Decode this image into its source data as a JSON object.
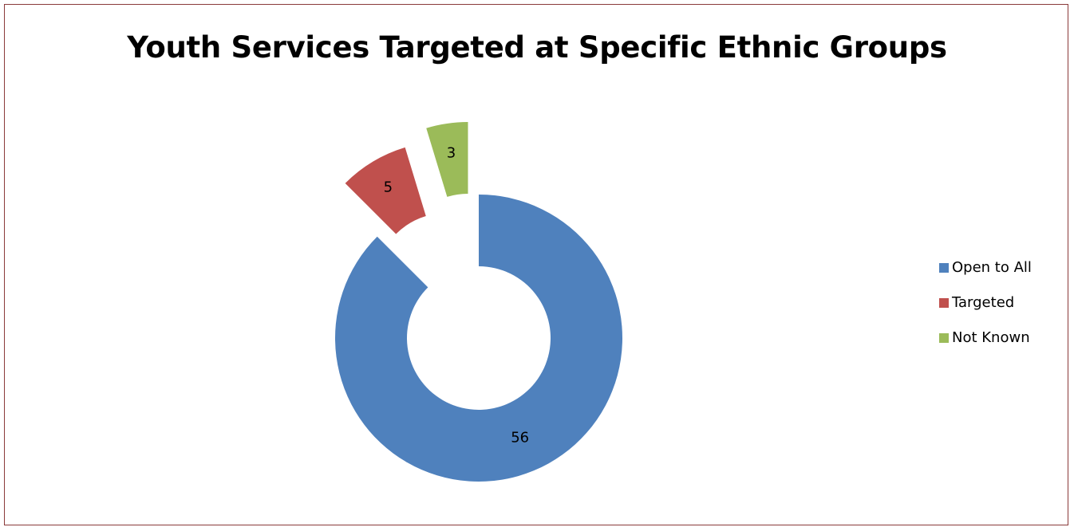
{
  "chart_data": {
    "type": "pie",
    "variant": "doughnut-exploded",
    "title": "Youth Services Targeted at Specific Ethnic Groups",
    "categories": [
      "Open to All",
      "Targeted",
      "Not Known"
    ],
    "values": [
      56,
      5,
      3
    ],
    "colors": [
      "#4f81bd",
      "#c0504d",
      "#9bbb59"
    ],
    "data_labels": [
      "56",
      "5",
      "3"
    ],
    "legend_position": "right"
  }
}
